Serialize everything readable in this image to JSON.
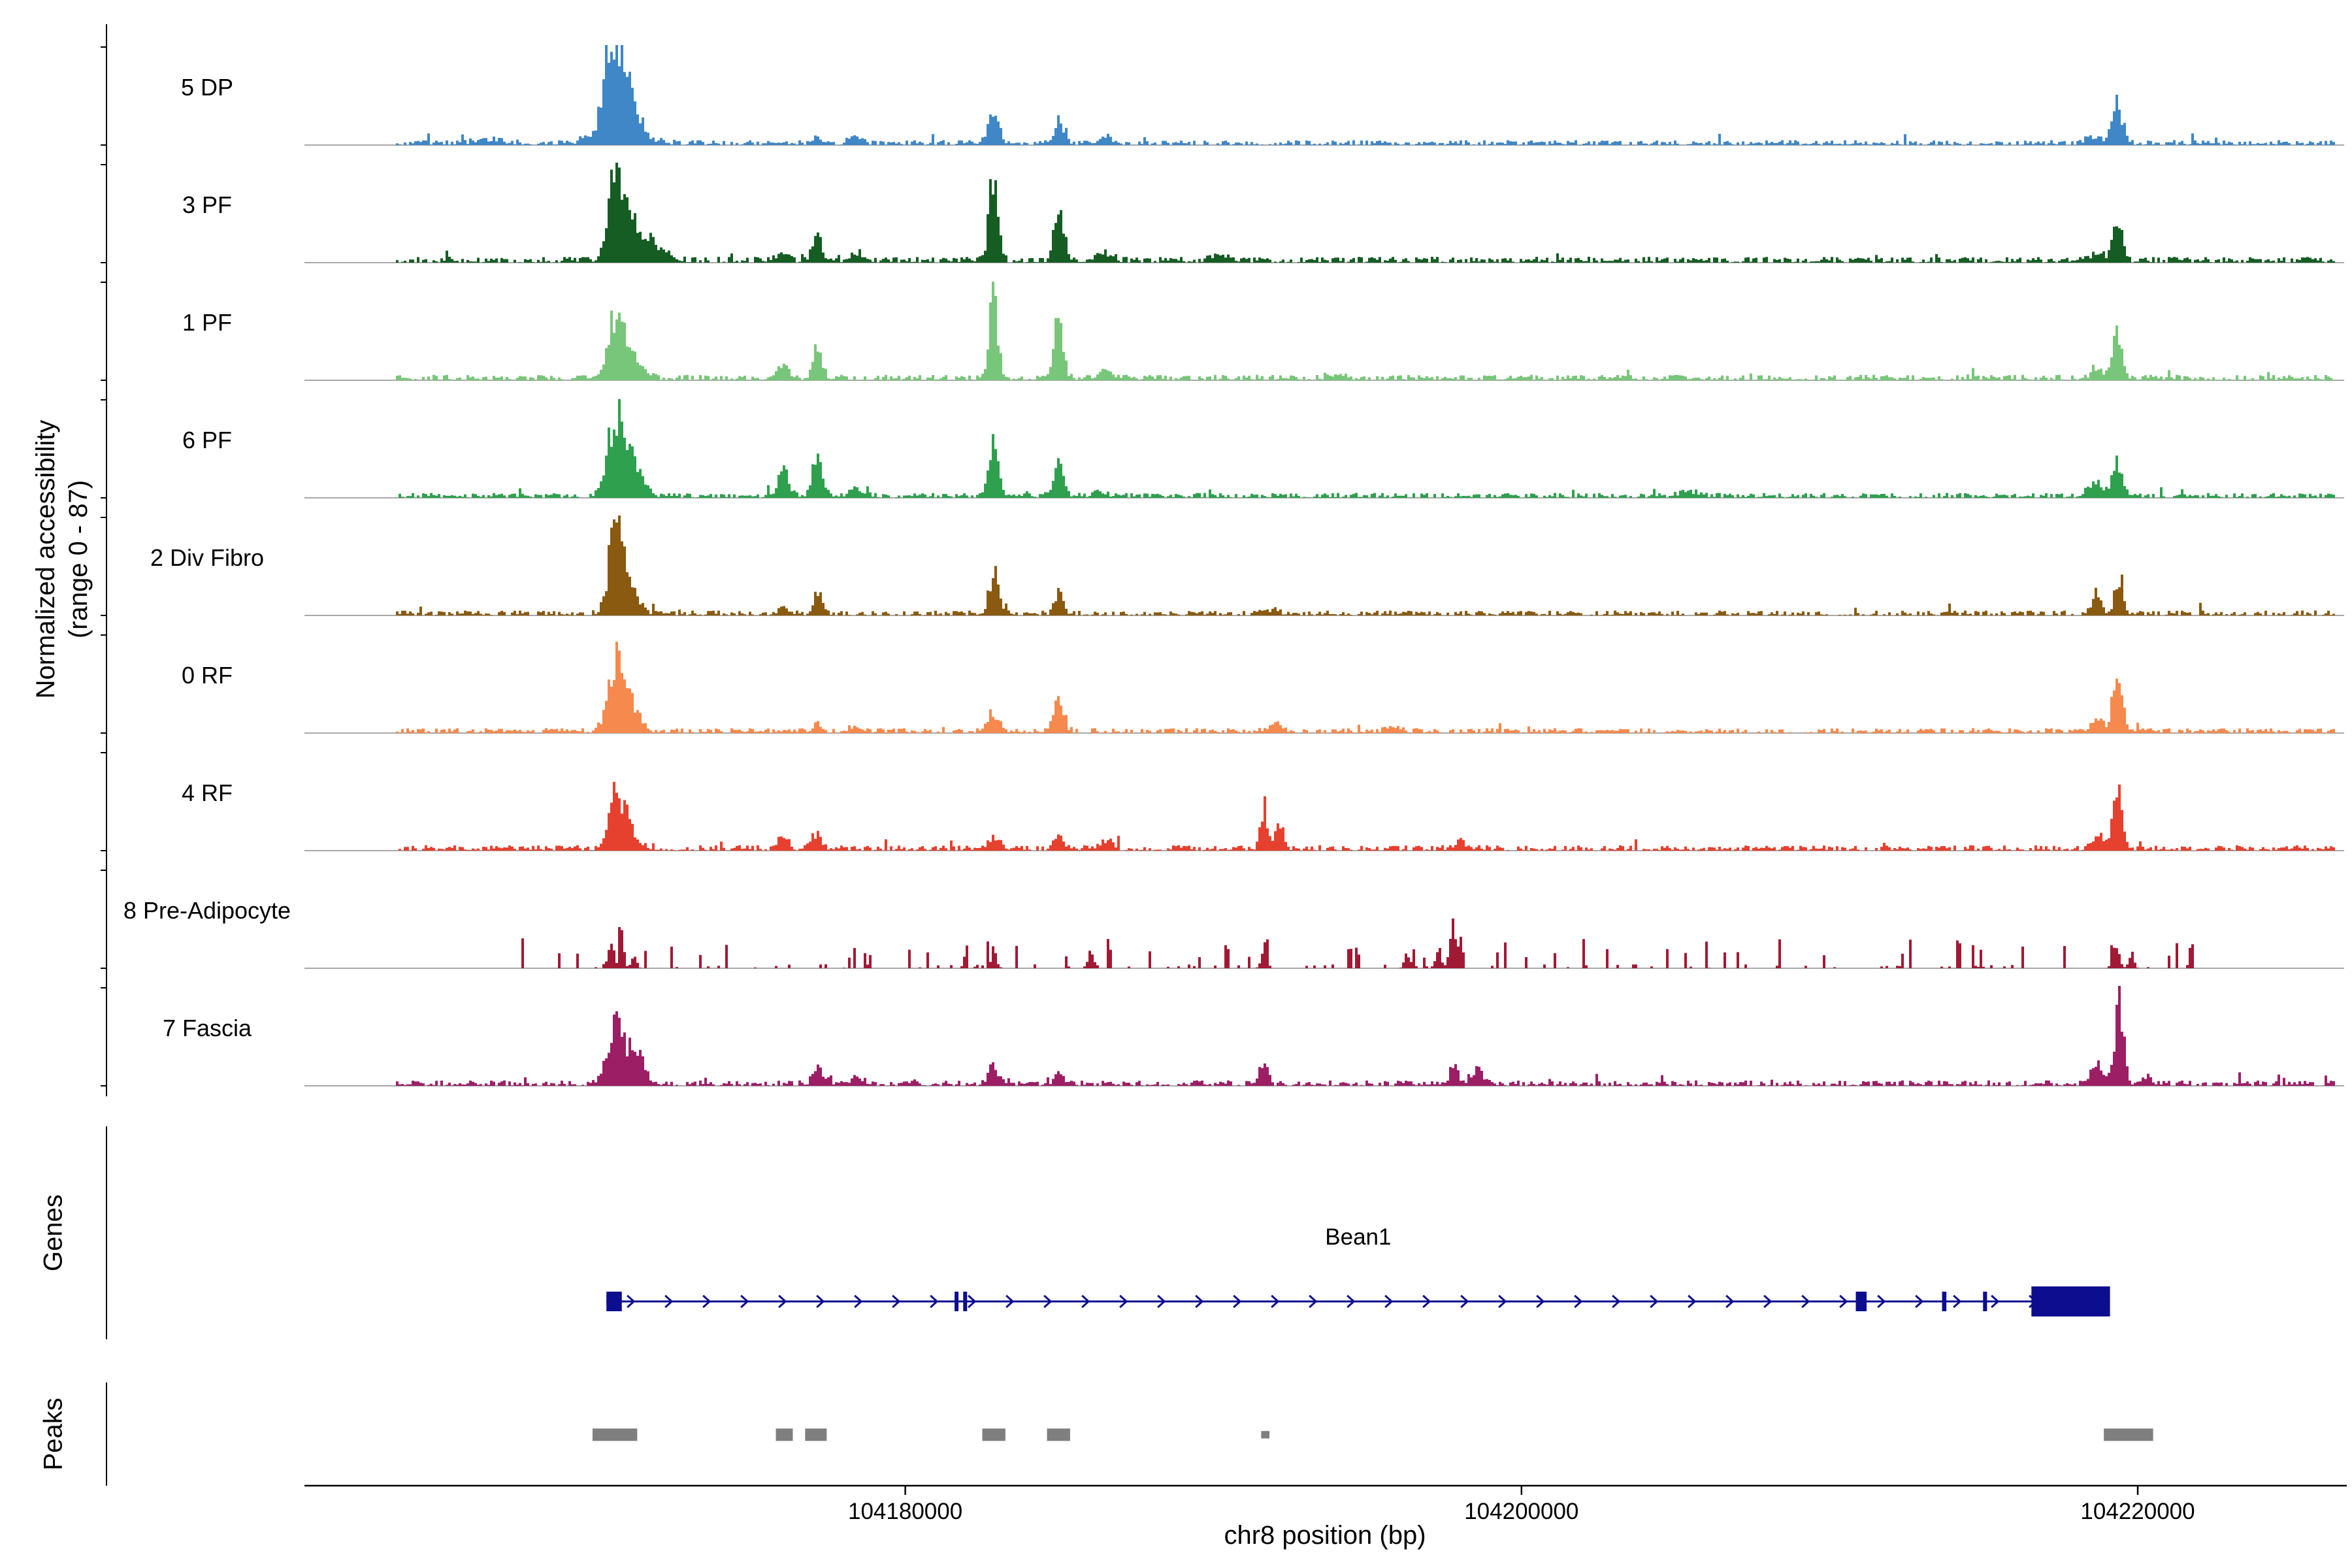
{
  "figure": {
    "y_axis_label_line1": "Normalized accessibility",
    "y_axis_label_line2": "(range 0 - 87)",
    "genes_section_label": "Genes",
    "peaks_section_label": "Peaks",
    "x_axis_label": "chr8 position (bp)"
  },
  "chart_data": {
    "type": "area",
    "title": "",
    "xlabel": "chr8 position (bp)",
    "ylabel": "Normalized accessibility (range 0 - 87)",
    "y_range": [
      0,
      87
    ],
    "x_domain_bp": [
      104160500,
      104226700
    ],
    "x_ticks": [
      {
        "bp": 104180000,
        "label": "104180000"
      },
      {
        "bp": 104200000,
        "label": "104200000"
      },
      {
        "bp": 104220000,
        "label": "104220000"
      }
    ],
    "axis_color": "#000000",
    "baseline_color": "#8c8c8c",
    "tracks": [
      {
        "label": "5 DP",
        "color": "#3f87c6",
        "fuzz_density": 0.85,
        "fuzz_amp": 0.05,
        "spike_density": 0.012,
        "spike_amp": 0.1,
        "peaks": [
          [
            104170350,
            0.45,
            200
          ],
          [
            104170600,
            0.95,
            220
          ],
          [
            104171050,
            0.4,
            280
          ],
          [
            104170700,
            0.28,
            650
          ],
          [
            104166500,
            0.05,
            500
          ],
          [
            104177200,
            0.07,
            200
          ],
          [
            104178400,
            0.1,
            200
          ],
          [
            104182870,
            0.4,
            170
          ],
          [
            104184990,
            0.28,
            170
          ],
          [
            104186500,
            0.07,
            250
          ],
          [
            104218600,
            0.1,
            250
          ],
          [
            104219350,
            0.5,
            170
          ]
        ]
      },
      {
        "label": "3 PF",
        "color": "#155d23",
        "fuzz_density": 0.85,
        "fuzz_amp": 0.06,
        "spike_density": 0.02,
        "spike_amp": 0.1,
        "peaks": [
          [
            104170600,
            0.92,
            240
          ],
          [
            104171000,
            0.45,
            380
          ],
          [
            104171800,
            0.18,
            450
          ],
          [
            104176050,
            0.1,
            180
          ],
          [
            104177150,
            0.36,
            150
          ],
          [
            104178400,
            0.1,
            200
          ],
          [
            104182870,
            1.0,
            150
          ],
          [
            104184990,
            0.7,
            150
          ],
          [
            104186500,
            0.12,
            220
          ],
          [
            104190200,
            0.07,
            300
          ],
          [
            104218700,
            0.12,
            200
          ],
          [
            104219350,
            0.48,
            160
          ]
        ]
      },
      {
        "label": "1 PF",
        "color": "#78c679",
        "fuzz_density": 0.85,
        "fuzz_amp": 0.055,
        "spike_density": 0.015,
        "spike_amp": 0.09,
        "peaks": [
          [
            104170600,
            0.68,
            250
          ],
          [
            104171100,
            0.3,
            350
          ],
          [
            104176050,
            0.14,
            180
          ],
          [
            104177150,
            0.4,
            150
          ],
          [
            104182870,
            1.0,
            140
          ],
          [
            104184990,
            0.72,
            150
          ],
          [
            104186500,
            0.1,
            220
          ],
          [
            104194000,
            0.06,
            300
          ],
          [
            104218700,
            0.12,
            200
          ],
          [
            104219350,
            0.6,
            160
          ]
        ]
      },
      {
        "label": "6 PF",
        "color": "#2ea04e",
        "fuzz_density": 0.85,
        "fuzz_amp": 0.05,
        "spike_density": 0.015,
        "spike_amp": 0.09,
        "peaks": [
          [
            104170600,
            0.95,
            260
          ],
          [
            104171100,
            0.45,
            350
          ],
          [
            104176050,
            0.33,
            160
          ],
          [
            104177150,
            0.48,
            160
          ],
          [
            104178400,
            0.12,
            200
          ],
          [
            104182870,
            0.6,
            160
          ],
          [
            104184990,
            0.36,
            160
          ],
          [
            104186300,
            0.08,
            220
          ],
          [
            104205500,
            0.05,
            300
          ],
          [
            104218600,
            0.15,
            250
          ],
          [
            104219350,
            0.45,
            170
          ]
        ]
      },
      {
        "label": "2 Div Fibro",
        "color": "#8a5a10",
        "fuzz_density": 0.8,
        "fuzz_amp": 0.05,
        "spike_density": 0.012,
        "spike_amp": 0.09,
        "peaks": [
          [
            104170600,
            0.98,
            220
          ],
          [
            104170950,
            0.4,
            300
          ],
          [
            104176050,
            0.08,
            160
          ],
          [
            104177150,
            0.3,
            140
          ],
          [
            104182870,
            0.52,
            150
          ],
          [
            104184990,
            0.26,
            140
          ],
          [
            104191800,
            0.06,
            250
          ],
          [
            104218650,
            0.28,
            140
          ],
          [
            104219400,
            0.48,
            140
          ]
        ]
      },
      {
        "label": "0 RF",
        "color": "#f6894d",
        "fuzz_density": 0.8,
        "fuzz_amp": 0.05,
        "spike_density": 0.012,
        "spike_amp": 0.08,
        "peaks": [
          [
            104170600,
            0.78,
            260
          ],
          [
            104171050,
            0.35,
            300
          ],
          [
            104177150,
            0.1,
            160
          ],
          [
            104178400,
            0.07,
            200
          ],
          [
            104182870,
            0.25,
            160
          ],
          [
            104184990,
            0.45,
            150
          ],
          [
            104192000,
            0.08,
            250
          ],
          [
            104195800,
            0.06,
            250
          ],
          [
            104218700,
            0.15,
            200
          ],
          [
            104219350,
            0.72,
            150
          ]
        ]
      },
      {
        "label": "4 RF",
        "color": "#e6402e",
        "fuzz_density": 0.85,
        "fuzz_amp": 0.055,
        "spike_density": 0.02,
        "spike_amp": 0.1,
        "peaks": [
          [
            104170600,
            0.58,
            230
          ],
          [
            104170950,
            0.25,
            300
          ],
          [
            104176050,
            0.14,
            160
          ],
          [
            104177150,
            0.18,
            150
          ],
          [
            104182870,
            0.16,
            160
          ],
          [
            104184990,
            0.18,
            150
          ],
          [
            104186500,
            0.1,
            200
          ],
          [
            104191650,
            0.52,
            120
          ],
          [
            104192100,
            0.28,
            130
          ],
          [
            104198000,
            0.08,
            200
          ],
          [
            104218700,
            0.18,
            180
          ],
          [
            104219350,
            0.78,
            140
          ]
        ]
      },
      {
        "label": "8 Pre-Adipocyte",
        "color": "#a11a35",
        "fuzz_density": 0.15,
        "fuzz_amp": 0.04,
        "spike_density": 0.1,
        "spike_amp": 0.3,
        "noise_range": [
          104167500,
          104222000
        ],
        "peaks": [
          [
            104170450,
            0.38,
            90
          ],
          [
            104170800,
            0.3,
            80
          ],
          [
            104171200,
            0.22,
            80
          ],
          [
            104182870,
            0.22,
            90
          ],
          [
            104186000,
            0.2,
            90
          ],
          [
            104191650,
            0.28,
            90
          ],
          [
            104196300,
            0.2,
            90
          ],
          [
            104197300,
            0.25,
            90
          ],
          [
            104197800,
            0.52,
            110
          ],
          [
            104219300,
            0.33,
            100
          ],
          [
            104219800,
            0.2,
            80
          ]
        ]
      },
      {
        "label": "7 Fascia",
        "color": "#9c1f66",
        "fuzz_density": 0.85,
        "fuzz_amp": 0.055,
        "spike_density": 0.02,
        "spike_amp": 0.12,
        "peaks": [
          [
            104170600,
            0.82,
            240
          ],
          [
            104171250,
            0.45,
            250
          ],
          [
            104177150,
            0.2,
            150
          ],
          [
            104178400,
            0.1,
            180
          ],
          [
            104182870,
            0.24,
            150
          ],
          [
            104184990,
            0.15,
            150
          ],
          [
            104191650,
            0.33,
            120
          ],
          [
            104197800,
            0.28,
            130
          ],
          [
            104198600,
            0.15,
            150
          ],
          [
            104218650,
            0.25,
            180
          ],
          [
            104219400,
            0.98,
            150
          ],
          [
            104220300,
            0.12,
            150
          ]
        ]
      }
    ],
    "gene": {
      "name": "Bean1",
      "strand": "+",
      "start": 104170300,
      "end": 104219100,
      "color": "#0d0d8f",
      "exons": [
        [
          104170300,
          104170800,
          "s"
        ],
        [
          104181600,
          104181720,
          "s"
        ],
        [
          104181880,
          104182000,
          "s"
        ],
        [
          104210850,
          104211200,
          "s"
        ],
        [
          104213650,
          104213790,
          "s"
        ],
        [
          104214980,
          104215110,
          "s"
        ],
        [
          104216550,
          104219100,
          "l"
        ]
      ]
    },
    "peaks_track": {
      "color": "#7f7f7f",
      "regions": [
        [
          104169850,
          104171300,
          1
        ],
        [
          104175800,
          104176350,
          1
        ],
        [
          104176750,
          104177450,
          1
        ],
        [
          104182500,
          104183250,
          1
        ],
        [
          104184600,
          104185350,
          1
        ],
        [
          104191550,
          104191820,
          0.6
        ],
        [
          104218900,
          104220500,
          1
        ]
      ]
    }
  }
}
